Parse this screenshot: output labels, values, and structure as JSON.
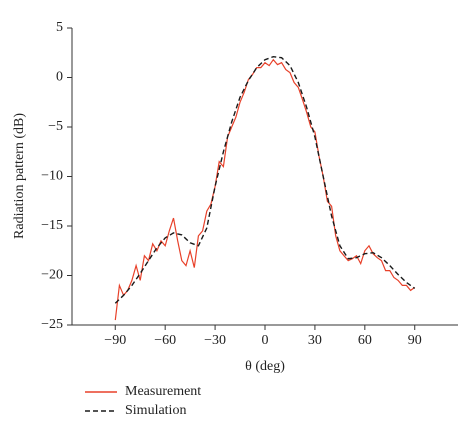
{
  "chart_data": {
    "type": "line",
    "xlabel": "θ (deg)",
    "ylabel": "Radiation pattern (dB)",
    "xlim": [
      -116,
      116
    ],
    "ylim": [
      -25,
      5
    ],
    "xticks": [
      {
        "value": -90,
        "label": "−90"
      },
      {
        "value": -60,
        "label": "−60"
      },
      {
        "value": -30,
        "label": "−30"
      },
      0,
      30,
      60,
      90
    ],
    "yticks": [
      {
        "value": -25,
        "label": "−25"
      },
      {
        "value": -20,
        "label": "−20"
      },
      {
        "value": -15,
        "label": "−15"
      },
      {
        "value": -10,
        "label": "−10"
      },
      {
        "value": -5,
        "label": "−5"
      },
      0,
      5
    ],
    "legend": "bottom-left",
    "series": [
      {
        "name": "Measurement",
        "color": "#e8412a",
        "dash": false,
        "x": [
          -90,
          -87.5,
          -85,
          -82.5,
          -80,
          -77.5,
          -75,
          -72.5,
          -70,
          -67.5,
          -65,
          -62.5,
          -60,
          -57.5,
          -55,
          -52.5,
          -50,
          -47.5,
          -45,
          -42.5,
          -40,
          -37.5,
          -35,
          -32.5,
          -30,
          -27.5,
          -25,
          -22.5,
          -20,
          -17.5,
          -15,
          -12.5,
          -10,
          -7.5,
          -5,
          -2.5,
          0,
          2.5,
          5,
          7.5,
          10,
          12.5,
          15,
          17.5,
          20,
          22.5,
          25,
          27.5,
          30,
          32.5,
          35,
          37.5,
          40,
          42.5,
          45,
          47.5,
          50,
          52.5,
          55,
          57.5,
          60,
          62.5,
          65,
          67.5,
          70,
          72.5,
          75,
          77.5,
          80,
          82.5,
          85,
          87.5,
          90
        ],
        "values": [
          -24.5,
          -21,
          -22,
          -21.5,
          -20.5,
          -19,
          -20.5,
          -18,
          -18.5,
          -16.8,
          -17.5,
          -16.5,
          -17,
          -15.5,
          -14.2,
          -16.5,
          -18.5,
          -19,
          -17.5,
          -19.2,
          -16,
          -15.5,
          -13.5,
          -12.8,
          -11,
          -8.5,
          -9,
          -6,
          -5,
          -4,
          -2.5,
          -1.5,
          -0.2,
          0.3,
          1,
          1,
          1.5,
          1.2,
          1.8,
          1.3,
          1.5,
          0.8,
          0.5,
          -0.5,
          -1,
          -2.2,
          -3.5,
          -5,
          -5.5,
          -8,
          -10,
          -12.5,
          -13,
          -16,
          -17.5,
          -18,
          -18.5,
          -18.3,
          -18,
          -18.8,
          -17.5,
          -17,
          -17.8,
          -18.2,
          -18.5,
          -19.5,
          -19.5,
          -20.2,
          -20.5,
          -21,
          -21,
          -21.5,
          -21.2
        ]
      },
      {
        "name": "Simulation",
        "color": "#1a1a1a",
        "dash": true,
        "x": [
          -90,
          -85,
          -80,
          -75,
          -70,
          -65,
          -60,
          -55,
          -50,
          -45,
          -40,
          -35,
          -30,
          -25,
          -20,
          -15,
          -10,
          -5,
          0,
          5,
          10,
          15,
          20,
          25,
          30,
          35,
          40,
          45,
          50,
          55,
          60,
          65,
          70,
          75,
          80,
          85,
          90
        ],
        "values": [
          -22.8,
          -22,
          -21,
          -19.8,
          -18.5,
          -17.2,
          -16.2,
          -15.7,
          -15.9,
          -16.7,
          -17,
          -15.2,
          -11,
          -7.5,
          -4.5,
          -2,
          -0.3,
          1,
          1.8,
          2.1,
          2,
          1.2,
          -0.5,
          -3,
          -6,
          -10,
          -14,
          -17,
          -18.3,
          -18.2,
          -17.8,
          -17.7,
          -18.2,
          -19,
          -19.9,
          -20.7,
          -21.3
        ]
      }
    ]
  }
}
